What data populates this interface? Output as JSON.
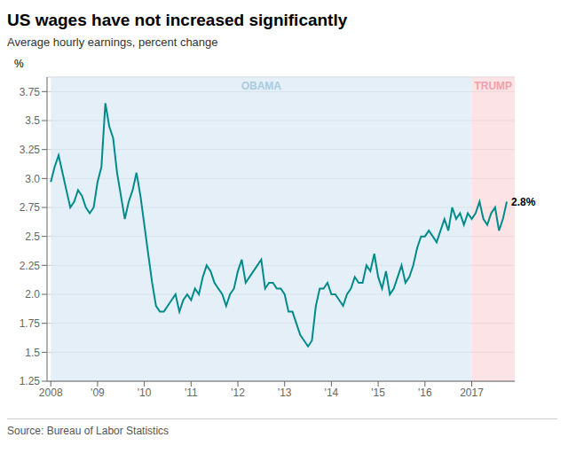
{
  "chart_data": {
    "type": "line",
    "title": "US wages have not increased significantly",
    "subtitle": "Average hourly earnings, percent change",
    "source": "Source: Bureau of Labor Statistics",
    "y_label": "%",
    "color": "#008B8B",
    "grid": true,
    "xlim": [
      2007.92,
      2017.92
    ],
    "ylim": [
      1.25,
      3.875
    ],
    "xticks": [
      2008,
      {
        "value": 2009,
        "label": "'09"
      },
      {
        "value": 2010,
        "label": "'10"
      },
      {
        "value": 2011,
        "label": "'11"
      },
      {
        "value": 2012,
        "label": "'12"
      },
      {
        "value": 2013,
        "label": "'13"
      },
      {
        "value": 2014,
        "label": "'14"
      },
      {
        "value": 2015,
        "label": "'15"
      },
      {
        "value": 2016,
        "label": "'16"
      },
      2017
    ],
    "yticks": [
      1.25,
      1.5,
      1.75,
      {
        "value": 2.0,
        "label": "2.0"
      },
      2.25,
      2.5,
      2.75,
      {
        "value": 3.0,
        "label": "3.0"
      },
      3.25,
      3.5,
      3.75
    ],
    "shaded": [
      {
        "x": [
          2008.0,
          2017.0
        ],
        "color": "#dce9f5",
        "label": "OBAMA",
        "label_color": "#a8cce0"
      },
      {
        "x": [
          2017.0,
          2017.92
        ],
        "color": "#fadadd",
        "label": "TRUMP",
        "label_color": "#f0a0a8"
      }
    ],
    "annotations": [
      {
        "text": "2.8%",
        "x": 2017.75,
        "y": 2.8
      }
    ],
    "x": [
      2008.0,
      2008.083,
      2008.167,
      2008.25,
      2008.333,
      2008.417,
      2008.5,
      2008.583,
      2008.667,
      2008.75,
      2008.833,
      2008.917,
      2009.0,
      2009.083,
      2009.167,
      2009.25,
      2009.333,
      2009.417,
      2009.5,
      2009.583,
      2009.667,
      2009.75,
      2009.833,
      2009.917,
      2010.0,
      2010.083,
      2010.167,
      2010.25,
      2010.333,
      2010.417,
      2010.5,
      2010.583,
      2010.667,
      2010.75,
      2010.833,
      2010.917,
      2011.0,
      2011.083,
      2011.167,
      2011.25,
      2011.333,
      2011.417,
      2011.5,
      2011.583,
      2011.667,
      2011.75,
      2011.833,
      2011.917,
      2012.0,
      2012.083,
      2012.167,
      2012.25,
      2012.333,
      2012.417,
      2012.5,
      2012.583,
      2012.667,
      2012.75,
      2012.833,
      2012.917,
      2013.0,
      2013.083,
      2013.167,
      2013.25,
      2013.333,
      2013.417,
      2013.5,
      2013.583,
      2013.667,
      2013.75,
      2013.833,
      2013.917,
      2014.0,
      2014.083,
      2014.167,
      2014.25,
      2014.333,
      2014.417,
      2014.5,
      2014.583,
      2014.667,
      2014.75,
      2014.833,
      2014.917,
      2015.0,
      2015.083,
      2015.167,
      2015.25,
      2015.333,
      2015.417,
      2015.5,
      2015.583,
      2015.667,
      2015.75,
      2015.833,
      2015.917,
      2016.0,
      2016.083,
      2016.167,
      2016.25,
      2016.333,
      2016.417,
      2016.5,
      2016.583,
      2016.667,
      2016.75,
      2016.833,
      2016.917,
      2017.0,
      2017.083,
      2017.167,
      2017.25,
      2017.333,
      2017.417,
      2017.5,
      2017.583,
      2017.667,
      2017.75
    ],
    "values": [
      2.97,
      3.1,
      3.2,
      3.05,
      2.9,
      2.75,
      2.8,
      2.9,
      2.85,
      2.75,
      2.7,
      2.75,
      2.97,
      3.1,
      3.65,
      3.45,
      3.35,
      3.05,
      2.85,
      2.65,
      2.8,
      2.9,
      3.05,
      2.85,
      2.6,
      2.35,
      2.1,
      1.9,
      1.85,
      1.85,
      1.9,
      1.95,
      2.0,
      1.85,
      1.95,
      2.0,
      1.95,
      2.05,
      2.0,
      2.15,
      2.25,
      2.2,
      2.1,
      2.05,
      2.0,
      1.9,
      2.0,
      2.05,
      2.2,
      2.3,
      2.1,
      2.15,
      2.2,
      2.25,
      2.3,
      2.05,
      2.1,
      2.1,
      2.05,
      2.05,
      2.0,
      1.85,
      1.85,
      1.75,
      1.65,
      1.6,
      1.55,
      1.6,
      1.9,
      2.05,
      2.05,
      2.1,
      2.0,
      2.0,
      1.95,
      1.9,
      2.0,
      2.05,
      2.15,
      2.1,
      2.1,
      2.25,
      2.2,
      2.35,
      2.15,
      2.05,
      2.2,
      2.0,
      2.05,
      2.15,
      2.25,
      2.1,
      2.15,
      2.25,
      2.4,
      2.5,
      2.5,
      2.55,
      2.5,
      2.45,
      2.55,
      2.65,
      2.55,
      2.75,
      2.65,
      2.7,
      2.6,
      2.7,
      2.65,
      2.7,
      2.8,
      2.65,
      2.6,
      2.7,
      2.75,
      2.55,
      2.65,
      2.8
    ]
  }
}
